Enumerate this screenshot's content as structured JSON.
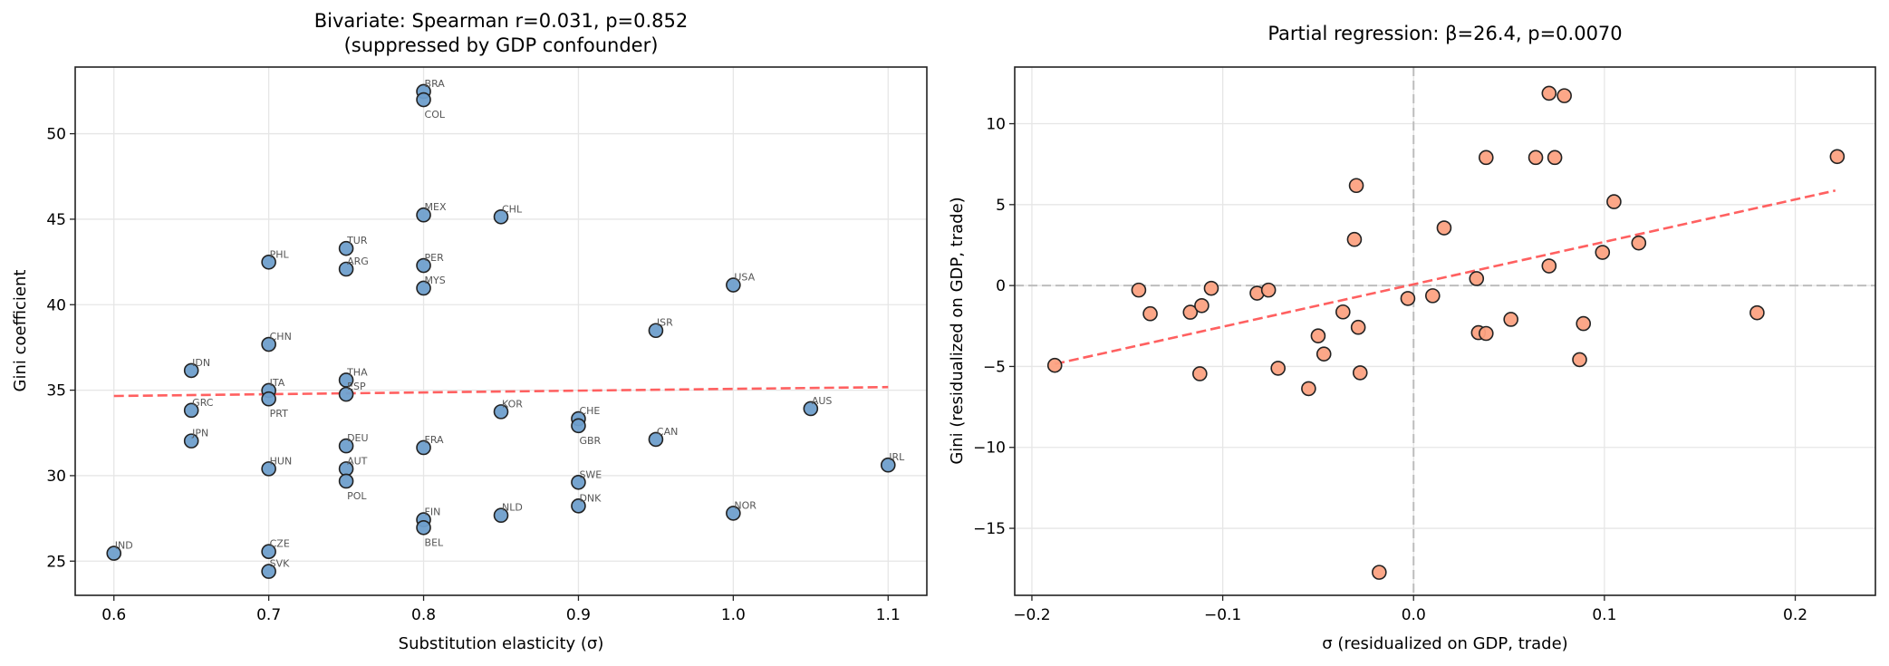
{
  "chart_data": [
    {
      "type": "scatter",
      "title_line1": "Bivariate: Spearman r=0.031, p=0.852",
      "title_line2": "(suppressed by GDP confounder)",
      "xlabel": "Substitution elasticity (σ)",
      "ylabel": "Gini coefficient",
      "xlim": [
        0.575,
        1.125
      ],
      "ylim": [
        23.0,
        53.9
      ],
      "xticks": [
        0.6,
        0.7,
        0.8,
        0.9,
        1.0,
        1.1
      ],
      "xtick_labels": [
        "0.6",
        "0.7",
        "0.8",
        "0.9",
        "1.0",
        "1.1"
      ],
      "yticks": [
        25,
        30,
        35,
        40,
        45,
        50
      ],
      "ytick_labels": [
        "25",
        "30",
        "35",
        "40",
        "45",
        "50"
      ],
      "grid": true,
      "point_color": "#6f9fcc",
      "edge_color": "#222222",
      "trend_color": "#ff6060",
      "trend_line": {
        "x": [
          0.6,
          1.1
        ],
        "y": [
          34.66,
          35.18
        ]
      },
      "points": [
        {
          "label": "BRA",
          "x": 0.8,
          "y": 52.47
        },
        {
          "label": "COL",
          "x": 0.8,
          "y": 51.99
        },
        {
          "label": "MEX",
          "x": 0.8,
          "y": 45.25
        },
        {
          "label": "CHL",
          "x": 0.85,
          "y": 45.14
        },
        {
          "label": "TUR",
          "x": 0.75,
          "y": 43.29
        },
        {
          "label": "PHL",
          "x": 0.7,
          "y": 42.49
        },
        {
          "label": "ARG",
          "x": 0.75,
          "y": 42.08
        },
        {
          "label": "PER",
          "x": 0.8,
          "y": 42.29
        },
        {
          "label": "MYS",
          "x": 0.8,
          "y": 40.97
        },
        {
          "label": "USA",
          "x": 1.0,
          "y": 41.15
        },
        {
          "label": "ISR",
          "x": 0.95,
          "y": 38.49
        },
        {
          "label": "CHN",
          "x": 0.7,
          "y": 37.68
        },
        {
          "label": "IDN",
          "x": 0.65,
          "y": 36.15
        },
        {
          "label": "THA",
          "x": 0.75,
          "y": 35.59
        },
        {
          "label": "ITA",
          "x": 0.7,
          "y": 34.98
        },
        {
          "label": "ESP",
          "x": 0.75,
          "y": 34.76
        },
        {
          "label": "PRT",
          "x": 0.7,
          "y": 34.49
        },
        {
          "label": "AUS",
          "x": 1.05,
          "y": 33.92
        },
        {
          "label": "GRC",
          "x": 0.65,
          "y": 33.82
        },
        {
          "label": "KOR",
          "x": 0.85,
          "y": 33.74
        },
        {
          "label": "CHE",
          "x": 0.9,
          "y": 33.33
        },
        {
          "label": "GBR",
          "x": 0.9,
          "y": 32.92
        },
        {
          "label": "CAN",
          "x": 0.95,
          "y": 32.12
        },
        {
          "label": "JPN",
          "x": 0.65,
          "y": 32.03
        },
        {
          "label": "DEU",
          "x": 0.75,
          "y": 31.74
        },
        {
          "label": "FRA",
          "x": 0.8,
          "y": 31.64
        },
        {
          "label": "IRL",
          "x": 1.1,
          "y": 30.62
        },
        {
          "label": "HUN",
          "x": 0.7,
          "y": 30.4
        },
        {
          "label": "AUT",
          "x": 0.75,
          "y": 30.4
        },
        {
          "label": "POL",
          "x": 0.75,
          "y": 29.68
        },
        {
          "label": "SWE",
          "x": 0.9,
          "y": 29.61
        },
        {
          "label": "DNK",
          "x": 0.9,
          "y": 28.23
        },
        {
          "label": "NOR",
          "x": 1.0,
          "y": 27.8
        },
        {
          "label": "NLD",
          "x": 0.85,
          "y": 27.68
        },
        {
          "label": "FIN",
          "x": 0.8,
          "y": 27.42
        },
        {
          "label": "BEL",
          "x": 0.8,
          "y": 26.96
        },
        {
          "label": "CZE",
          "x": 0.7,
          "y": 25.56
        },
        {
          "label": "IND",
          "x": 0.6,
          "y": 25.46
        },
        {
          "label": "SVK",
          "x": 0.7,
          "y": 24.4
        }
      ]
    },
    {
      "type": "scatter",
      "title_line1": "Partial regression: β=26.4, p=0.0070",
      "xlabel": "σ (residualized on GDP, trade)",
      "ylabel": "Gini (residualized on GDP, trade)",
      "xlim": [
        -0.209,
        0.242
      ],
      "ylim": [
        -19.14,
        13.5
      ],
      "xticks": [
        -0.2,
        -0.1,
        0.0,
        0.1,
        0.2
      ],
      "xtick_labels": [
        "−0.2",
        "−0.1",
        "0.0",
        "0.1",
        "0.2"
      ],
      "yticks": [
        -15,
        -10,
        -5,
        0,
        5,
        10
      ],
      "ytick_labels": [
        "−15",
        "−10",
        "−5",
        "0",
        "5",
        "10"
      ],
      "grid": true,
      "reference_lines": {
        "x": 0,
        "y": 0
      },
      "point_color": "#fca282",
      "edge_color": "#222222",
      "trend_color": "#ff6060",
      "trend_line": {
        "x": [
          -0.188,
          0.221
        ],
        "y": [
          -4.85,
          5.87
        ]
      },
      "points": [
        {
          "x": -0.188,
          "y": -4.93
        },
        {
          "x": -0.144,
          "y": -0.28
        },
        {
          "x": -0.138,
          "y": -1.74
        },
        {
          "x": -0.117,
          "y": -1.65
        },
        {
          "x": -0.111,
          "y": -1.24
        },
        {
          "x": -0.106,
          "y": -0.17
        },
        {
          "x": -0.112,
          "y": -5.45
        },
        {
          "x": -0.082,
          "y": -0.47
        },
        {
          "x": -0.076,
          "y": -0.28
        },
        {
          "x": -0.071,
          "y": -5.11
        },
        {
          "x": -0.055,
          "y": -6.37
        },
        {
          "x": -0.05,
          "y": -3.11
        },
        {
          "x": -0.047,
          "y": -4.23
        },
        {
          "x": -0.037,
          "y": -1.63
        },
        {
          "x": -0.03,
          "y": 6.18
        },
        {
          "x": -0.031,
          "y": 2.85
        },
        {
          "x": -0.029,
          "y": -2.58
        },
        {
          "x": -0.028,
          "y": -5.39
        },
        {
          "x": -0.018,
          "y": -17.72
        },
        {
          "x": -0.003,
          "y": -0.8
        },
        {
          "x": 0.01,
          "y": -0.63
        },
        {
          "x": 0.016,
          "y": 3.56
        },
        {
          "x": 0.033,
          "y": 0.43
        },
        {
          "x": 0.034,
          "y": -2.91
        },
        {
          "x": 0.038,
          "y": -2.96
        },
        {
          "x": 0.038,
          "y": 7.91
        },
        {
          "x": 0.051,
          "y": -2.09
        },
        {
          "x": 0.064,
          "y": 7.91
        },
        {
          "x": 0.071,
          "y": 11.88
        },
        {
          "x": 0.071,
          "y": 1.21
        },
        {
          "x": 0.074,
          "y": 7.91
        },
        {
          "x": 0.079,
          "y": 11.73
        },
        {
          "x": 0.087,
          "y": -4.58
        },
        {
          "x": 0.089,
          "y": -2.35
        },
        {
          "x": 0.099,
          "y": 2.05
        },
        {
          "x": 0.105,
          "y": 5.18
        },
        {
          "x": 0.118,
          "y": 2.63
        },
        {
          "x": 0.18,
          "y": -1.68
        },
        {
          "x": 0.222,
          "y": 7.97
        }
      ]
    }
  ]
}
